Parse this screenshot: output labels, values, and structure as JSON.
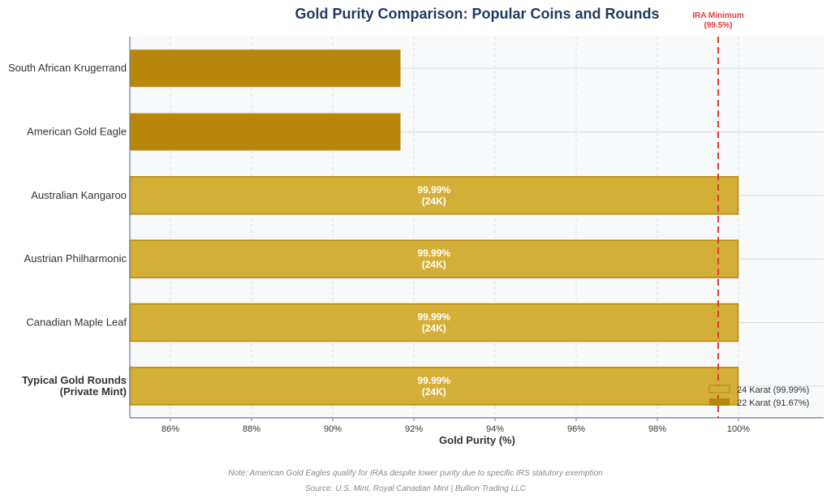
{
  "chart_data": {
    "type": "bar",
    "orientation": "horizontal",
    "title": "Gold Purity Comparison: Popular Coins and Rounds",
    "xlabel": "Gold Purity (%)",
    "ylabel": "",
    "xlim": [
      85,
      102.1
    ],
    "xticks": [
      86,
      88,
      90,
      92,
      94,
      96,
      98,
      100
    ],
    "xtick_labels": [
      "86%",
      "88%",
      "90%",
      "92%",
      "94%",
      "96%",
      "98%",
      "100%"
    ],
    "grid": true,
    "categories": [
      "South African Krugerrand",
      "American Gold Eagle",
      "Australian Kangaroo",
      "Austrian Philharmonic",
      "Canadian Maple Leaf",
      "Typical Gold Rounds\n(Private Mint)"
    ],
    "values": [
      91.67,
      91.67,
      99.99,
      99.99,
      99.99,
      99.99
    ],
    "bar_series": [
      "22K",
      "22K",
      "24K",
      "24K",
      "24K",
      "24K"
    ],
    "bar_labels": [
      "",
      "",
      "99.99%\n(24K)",
      "99.99%\n(24K)",
      "99.99%\n(24K)",
      "99.99%\n(24K)"
    ],
    "bold_categories": [
      5
    ],
    "reference_line": {
      "value": 99.5,
      "label": "IRA Minimum\n(99.5%)",
      "color": "#E53935"
    },
    "legend": {
      "placement": "bottom-right",
      "entries": [
        {
          "name": "24 Karat (99.99%)",
          "key": "24K"
        },
        {
          "name": "22 Karat (91.67%)",
          "key": "22K"
        }
      ]
    },
    "colors": {
      "24K": "#D4AF37",
      "22K": "#B8860B",
      "edge": "#B8860B",
      "title": "#1F3A5F"
    }
  },
  "notes": {
    "note": "Note: American Gold Eagles qualify for IRAs despite lower purity due to specific IRS statutory exemption",
    "source": "Source: U.S. Mint, Royal Canadian Mint | Bullion Trading LLC"
  }
}
